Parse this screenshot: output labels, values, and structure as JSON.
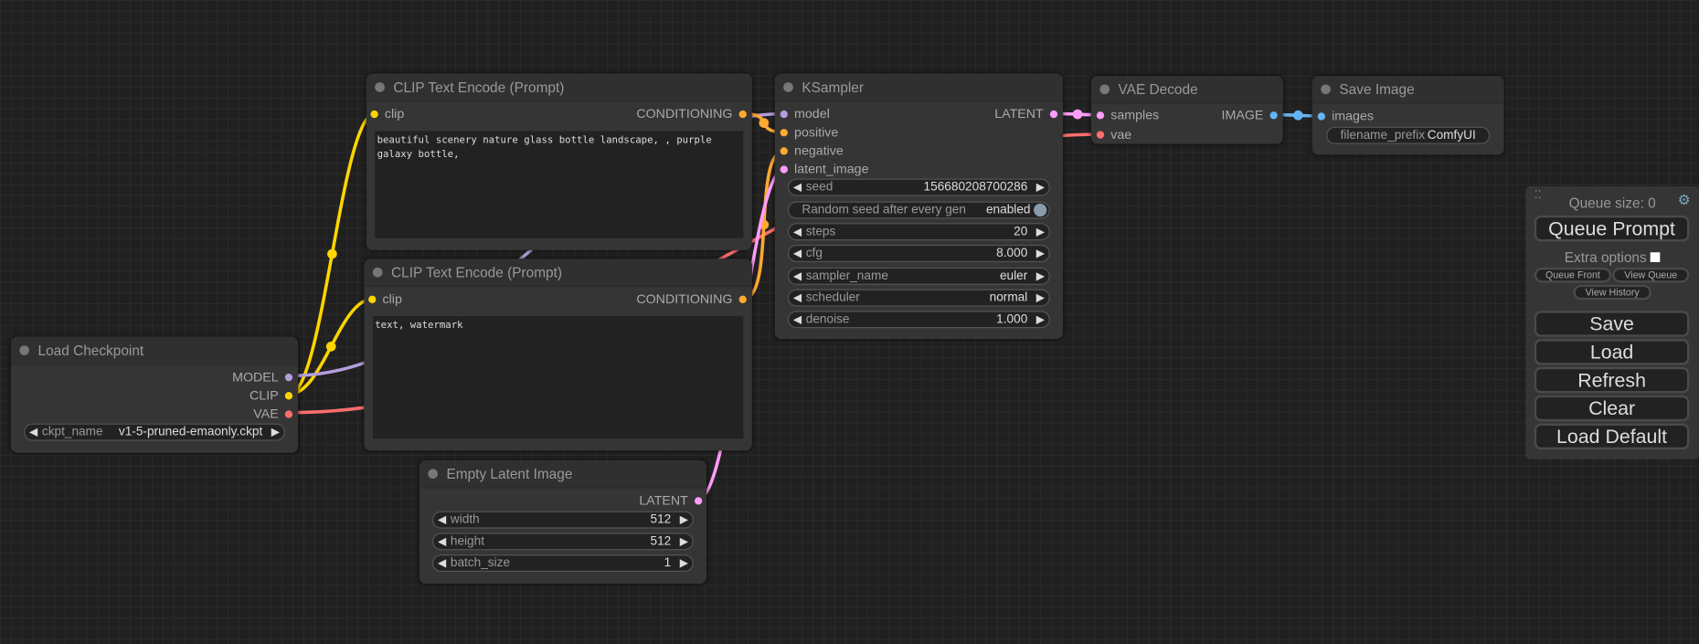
{
  "colors": {
    "clip": "#ffd500",
    "model": "#b39ddb",
    "vae": "#ff6e6e",
    "conditioning": "#ffa931",
    "latent": "#ff9cf9",
    "image": "#64b5f6"
  },
  "nodes": {
    "load_checkpoint": {
      "title": "Load Checkpoint",
      "outputs": [
        "MODEL",
        "CLIP",
        "VAE"
      ],
      "ckpt_label": "ckpt_name",
      "ckpt_value": "v1-5-pruned-emaonly.ckpt"
    },
    "clip_pos": {
      "title": "CLIP Text Encode (Prompt)",
      "input": "clip",
      "output": "CONDITIONING",
      "text": "beautiful scenery nature glass bottle landscape, , purple galaxy bottle,"
    },
    "clip_neg": {
      "title": "CLIP Text Encode (Prompt)",
      "input": "clip",
      "output": "CONDITIONING",
      "text": "text, watermark"
    },
    "empty_latent": {
      "title": "Empty Latent Image",
      "output": "LATENT",
      "widgets": [
        {
          "label": "width",
          "value": "512"
        },
        {
          "label": "height",
          "value": "512"
        },
        {
          "label": "batch_size",
          "value": "1"
        }
      ]
    },
    "ksampler": {
      "title": "KSampler",
      "inputs": [
        "model",
        "positive",
        "negative",
        "latent_image"
      ],
      "output": "LATENT",
      "seed": {
        "label": "seed",
        "value": "156680208700286"
      },
      "random_seed": {
        "label": "Random seed after every gen",
        "value": "enabled"
      },
      "widgets": [
        {
          "label": "steps",
          "value": "20"
        },
        {
          "label": "cfg",
          "value": "8.000"
        },
        {
          "label": "sampler_name",
          "value": "euler"
        },
        {
          "label": "scheduler",
          "value": "normal"
        },
        {
          "label": "denoise",
          "value": "1.000"
        }
      ]
    },
    "vae_decode": {
      "title": "VAE Decode",
      "inputs": [
        "samples",
        "vae"
      ],
      "output": "IMAGE"
    },
    "save_image": {
      "title": "Save Image",
      "input": "images",
      "prefix_label": "filename_prefix",
      "prefix_value": "ComfyUI"
    }
  },
  "panel": {
    "queue_size": "Queue size: 0",
    "queue_prompt": "Queue Prompt",
    "extra_options": "Extra options",
    "queue_front": "Queue Front",
    "view_queue": "View Queue",
    "view_history": "View History",
    "save": "Save",
    "load": "Load",
    "refresh": "Refresh",
    "clear": "Clear",
    "load_default": "Load Default"
  }
}
